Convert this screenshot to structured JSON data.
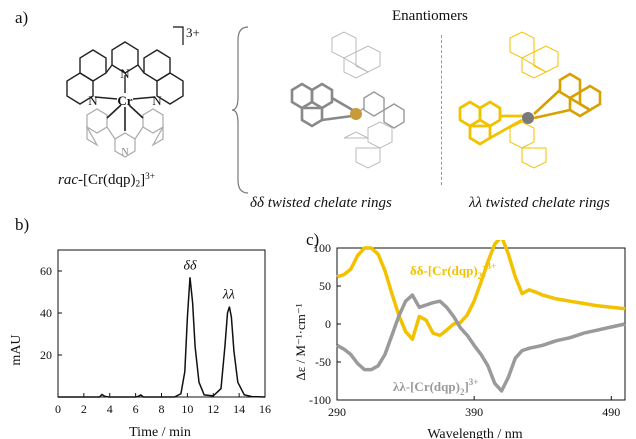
{
  "panel_a": {
    "label": "a)",
    "charge": "3+",
    "metal": "Cr",
    "donor_atom": "N",
    "compound_prefix": "rac",
    "compound_formula": "-[Cr(dqp)",
    "compound_sub": "2",
    "compound_sup": "3+",
    "enantiomers_title": "Enantiomers",
    "left_caption": "δδ twisted chelate rings",
    "right_caption": "λλ twisted chelate rings",
    "colors": {
      "grey_enantiomer": "#8c8c8c",
      "gold_enantiomer": "#f2c200",
      "metal_center": "#c99a3a"
    }
  },
  "panel_b": {
    "label": "b)",
    "chart_data": {
      "type": "line",
      "xlabel": "Time / min",
      "ylabel": "mAU",
      "xlim": [
        0,
        16
      ],
      "ylim": [
        0,
        70
      ],
      "xticks": [
        0,
        2,
        4,
        6,
        8,
        10,
        12,
        14,
        16
      ],
      "yticks": [
        20,
        40,
        60
      ],
      "peaks": [
        {
          "label": "δδ",
          "x": 10.2,
          "y": 57
        },
        {
          "label": "λλ",
          "x": 13.2,
          "y": 43
        }
      ],
      "series": [
        {
          "color": "#111111",
          "x": [
            0,
            3.2,
            3.4,
            3.6,
            3.9,
            6.0,
            6.2,
            6.4,
            6.6,
            9.0,
            9.5,
            9.8,
            10.0,
            10.2,
            10.4,
            10.6,
            10.9,
            11.3,
            12.0,
            12.6,
            12.9,
            13.1,
            13.25,
            13.4,
            13.6,
            13.9,
            14.4,
            15.0,
            16.0
          ],
          "y": [
            0,
            0,
            1.2,
            0.4,
            0,
            0,
            0.3,
            1.0,
            0,
            0,
            1.5,
            12,
            38,
            57,
            45,
            24,
            7,
            1.0,
            0.5,
            4,
            24,
            40,
            43,
            38,
            22,
            7,
            1.0,
            0.2,
            0
          ]
        }
      ]
    }
  },
  "panel_c": {
    "label": "c)",
    "chart_data": {
      "type": "line",
      "xlabel": "Wavelength / nm",
      "ylabel": "Δε / M⁻¹·cm⁻¹",
      "xlim": [
        290,
        500
      ],
      "ylim": [
        -100,
        100
      ],
      "xticks": [
        290,
        390,
        490
      ],
      "yticks": [
        -100,
        -50,
        0,
        50,
        100
      ],
      "series": [
        {
          "name": "δδ-[Cr(dqp)2]3+",
          "label_main": "δδ-[Cr(dqp)",
          "label_sub": "2",
          "label_sup": "3+",
          "color": "#f2c200",
          "x": [
            290,
            295,
            300,
            305,
            310,
            315,
            320,
            325,
            330,
            335,
            340,
            345,
            350,
            355,
            360,
            365,
            370,
            375,
            380,
            385,
            390,
            395,
            400,
            405,
            410,
            415,
            420,
            425,
            430,
            435,
            440,
            450,
            460,
            470,
            480,
            490,
            500
          ],
          "y": [
            62,
            65,
            72,
            90,
            100,
            100,
            92,
            70,
            40,
            12,
            -10,
            -20,
            10,
            5,
            -12,
            -15,
            -8,
            0,
            2,
            12,
            30,
            55,
            82,
            105,
            115,
            92,
            62,
            40,
            45,
            42,
            38,
            33,
            30,
            27,
            24,
            22,
            20
          ]
        },
        {
          "name": "λλ-[Cr(dqp)2]3+",
          "label_main": "λλ-[Cr(dqp)",
          "label_sub": "2",
          "label_sup": "3+",
          "color": "#9a9a9a",
          "x": [
            290,
            295,
            300,
            305,
            310,
            315,
            320,
            325,
            330,
            335,
            340,
            345,
            350,
            355,
            360,
            365,
            370,
            375,
            380,
            385,
            390,
            395,
            400,
            405,
            410,
            415,
            420,
            425,
            430,
            435,
            440,
            450,
            460,
            470,
            480,
            490,
            500
          ],
          "y": [
            -28,
            -33,
            -40,
            -52,
            -60,
            -60,
            -55,
            -40,
            -15,
            10,
            30,
            38,
            22,
            25,
            28,
            30,
            22,
            10,
            -5,
            -15,
            -28,
            -40,
            -55,
            -78,
            -88,
            -70,
            -45,
            -35,
            -32,
            -30,
            -28,
            -22,
            -18,
            -12,
            -8,
            -4,
            0
          ]
        }
      ]
    }
  }
}
